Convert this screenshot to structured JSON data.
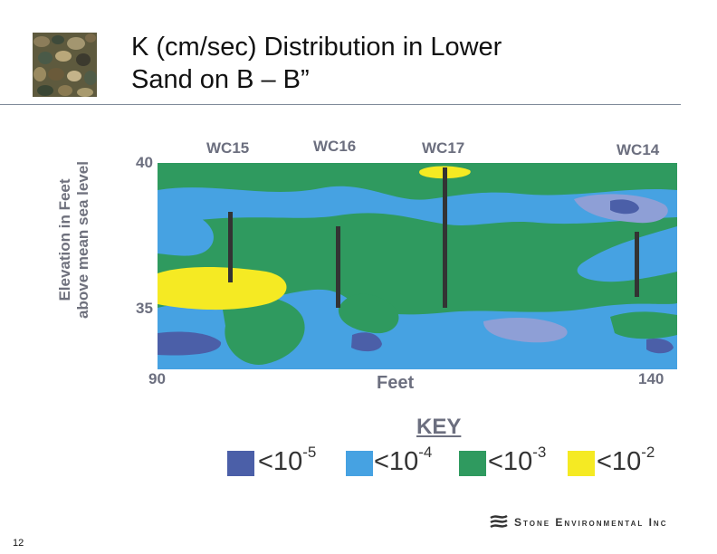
{
  "title": {
    "line1": "K (cm/sec) Distribution in Lower",
    "line2": "Sand on B – B”"
  },
  "figure": {
    "y_axis_label_line1": "Elevation in Feet",
    "y_axis_label_line2": "above mean sea level",
    "x_axis_label": "Feet",
    "y_ticks": [
      "40",
      "35"
    ],
    "x_ticks": [
      "90",
      "140"
    ],
    "wells": [
      "WC15",
      "WC16",
      "WC17",
      "WC14"
    ]
  },
  "key": {
    "title": "KEY",
    "items": [
      {
        "base": "<10",
        "exp": "-5",
        "color": "#4b5fa8"
      },
      {
        "base": "<10",
        "exp": "-4",
        "color": "#46a2e2"
      },
      {
        "base": "<10",
        "exp": "-3",
        "color": "#2f9a5f"
      },
      {
        "base": "<10",
        "exp": "-2",
        "color": "#f5ea23"
      }
    ]
  },
  "footer": {
    "page_number": "12",
    "company": "Stone Environmental Inc"
  },
  "colors": {
    "green": "#2f9a5f",
    "lightblue": "#46a2e2",
    "darkblue": "#4b5fa8",
    "paleblue": "#8e9fd6",
    "yellow": "#f5ea23",
    "label_gray": "#6c6f7f"
  }
}
